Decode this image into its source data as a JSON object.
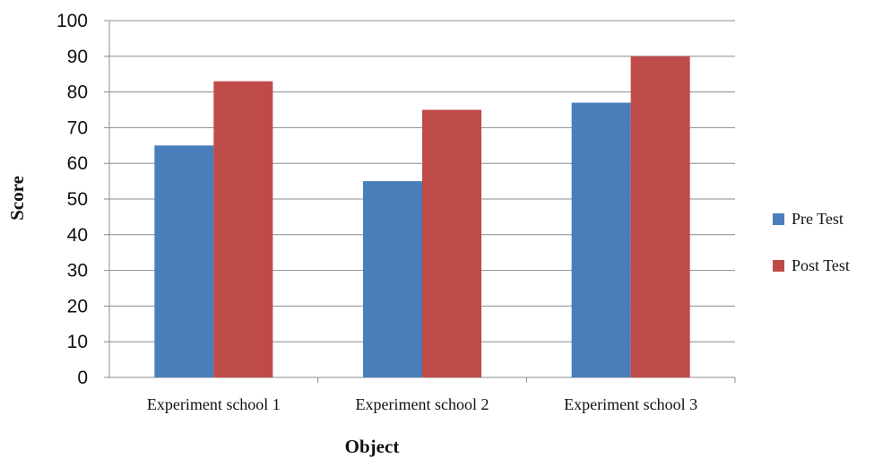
{
  "chart_data": {
    "type": "bar",
    "title": "",
    "xlabel": "Object",
    "ylabel": "Score",
    "categories": [
      "Experiment school 1",
      "Experiment school 2",
      "Experiment school 3"
    ],
    "series": [
      {
        "name": "Pre Test",
        "values": [
          65,
          55,
          77
        ],
        "color": "#4a7ebb"
      },
      {
        "name": "Post Test",
        "values": [
          83,
          75,
          90
        ],
        "color": "#be4b48"
      }
    ],
    "ylim": [
      0,
      100
    ],
    "yticks": [
      0,
      10,
      20,
      30,
      40,
      50,
      60,
      70,
      80,
      90,
      100
    ],
    "grid": true,
    "legend_position": "right"
  }
}
